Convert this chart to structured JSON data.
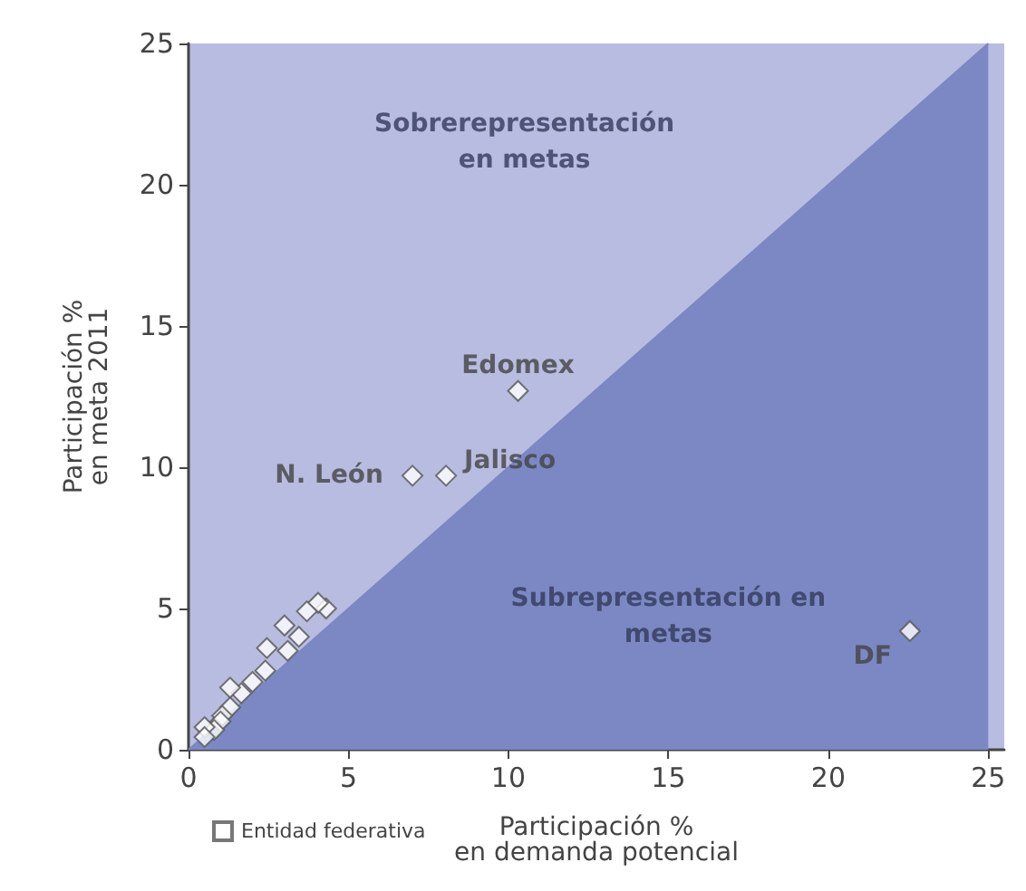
{
  "chart_data": {
    "type": "scatter",
    "xlabel": "Participación %\nen demanda potencial",
    "ylabel": "Participación %\nen meta 2011",
    "xlim": [
      0,
      25.5
    ],
    "xticks": [
      0,
      5,
      10,
      15,
      20,
      25
    ],
    "ylim": [
      0,
      25
    ],
    "yticks": [
      0,
      5,
      10,
      15,
      20,
      25
    ],
    "grid": false,
    "legend": "bottom left",
    "marker": "diamond",
    "series": [
      {
        "type": "area",
        "marker": "none",
        "color": "#7b88c4",
        "x": [
          0,
          5,
          10,
          15,
          20,
          25
        ],
        "values": [
          0,
          5,
          10,
          15,
          20,
          25
        ]
      },
      {
        "name": "Entidad federativa",
        "color": "#ffffff",
        "x": [
          4.3,
          4.05,
          3.7,
          3.0,
          3.45,
          3.1,
          2.45,
          2.4,
          2.0,
          1.65,
          1.3,
          1.3,
          1.05,
          1.0,
          0.8,
          0.5,
          0.5,
          7.0,
          8.05,
          10.3,
          22.55
        ],
        "values": [
          5.0,
          5.2,
          4.9,
          4.4,
          4.0,
          3.5,
          3.6,
          2.8,
          2.4,
          2.0,
          2.2,
          1.5,
          1.2,
          1.0,
          0.7,
          0.8,
          0.45,
          9.7,
          9.7,
          12.7,
          4.2
        ]
      }
    ],
    "annotations": [
      "Sobrerepresentación\nen metas",
      "Subrepresentación en\nmetas",
      {
        "text": "Edomex",
        "x": 10.3,
        "y": 12.7
      },
      {
        "text": "Jalisco",
        "x": 8.05,
        "y": 9.7
      },
      {
        "text": "N. León",
        "x": 7.0,
        "y": 9.7
      },
      {
        "text": "DF",
        "x": 22.55,
        "y": 4.2
      }
    ]
  }
}
